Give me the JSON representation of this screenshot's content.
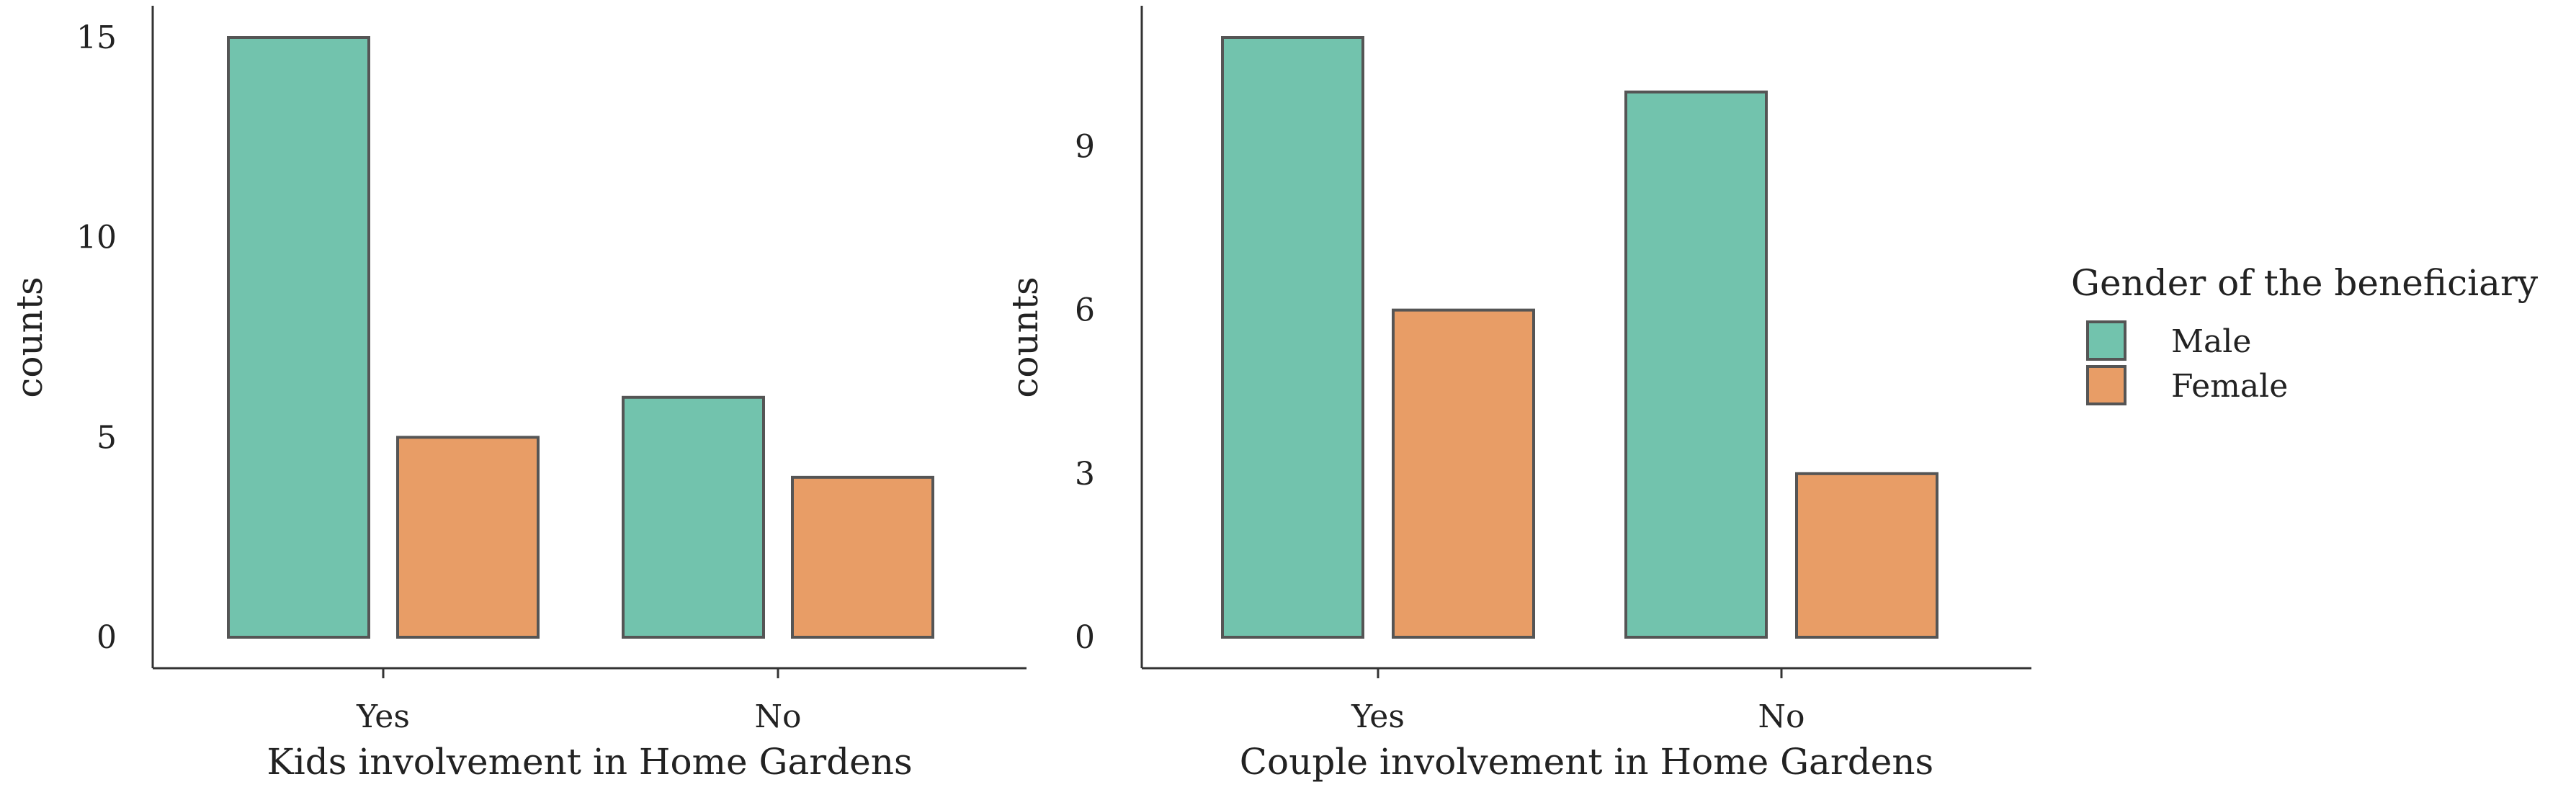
{
  "legend": {
    "title": "Gender of the beneficiary",
    "entries": [
      {
        "label": "Male",
        "color": "#72c3ad"
      },
      {
        "label": "Female",
        "color": "#e89d66"
      }
    ]
  },
  "colors": {
    "male": "#72c3ad",
    "female": "#e89d66",
    "bar_stroke": "#555555",
    "axis": "#333333"
  },
  "chart_data": [
    {
      "type": "bar",
      "categories": [
        "Yes",
        "No"
      ],
      "series": [
        {
          "name": "Male",
          "values": [
            15,
            6
          ]
        },
        {
          "name": "Female",
          "values": [
            5,
            4
          ]
        }
      ],
      "xlabel": "Kids involvement in Home Gardens",
      "ylabel": "counts",
      "yticks": [
        0,
        5,
        10,
        15
      ],
      "ylim": [
        0,
        15
      ],
      "grid": false,
      "legend": "right"
    },
    {
      "type": "bar",
      "categories": [
        "Yes",
        "No"
      ],
      "series": [
        {
          "name": "Male",
          "values": [
            11,
            10
          ]
        },
        {
          "name": "Female",
          "values": [
            6,
            3
          ]
        }
      ],
      "xlabel": "Couple involvement in Home Gardens",
      "ylabel": "counts",
      "yticks": [
        0,
        3,
        6,
        9
      ],
      "ylim": [
        0,
        11
      ],
      "grid": false,
      "legend": "right"
    }
  ]
}
